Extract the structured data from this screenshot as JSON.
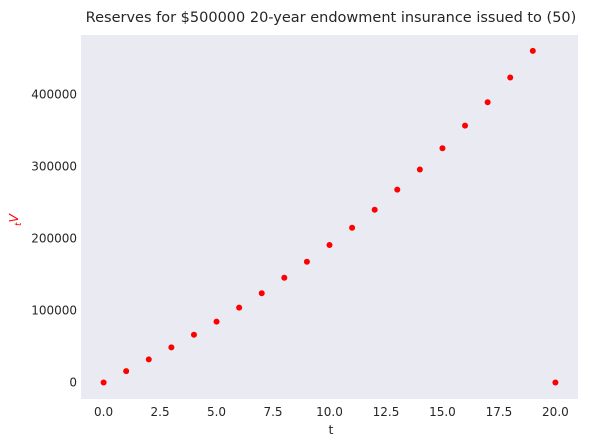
{
  "chart_data": {
    "type": "scatter",
    "title": "Reserves for $500000 20-year endowment insurance issued to (50)",
    "xlabel": "t",
    "ylabel": "tV",
    "ylabel_parts": {
      "subscript": "t",
      "main": "V"
    },
    "xlim": [
      -1.0,
      21.0
    ],
    "ylim": [
      -23000,
      483000
    ],
    "x_ticks": [
      0,
      2.5,
      5,
      7.5,
      10,
      12.5,
      15,
      17.5,
      20
    ],
    "x_tick_labels": [
      "0.0",
      "2.5",
      "5.0",
      "7.5",
      "10.0",
      "12.5",
      "15.0",
      "17.5",
      "20.0"
    ],
    "y_ticks": [
      0,
      100000,
      200000,
      300000,
      400000
    ],
    "y_tick_labels": [
      "0",
      "100000",
      "200000",
      "300000",
      "400000"
    ],
    "grid": false,
    "marker_color": "#ff0000",
    "background_color": "#eaeaf2",
    "series": [
      {
        "x": [
          0,
          1,
          2,
          3,
          4,
          5,
          6,
          7,
          8,
          9,
          10,
          11,
          12,
          13,
          14,
          15,
          16,
          17,
          18,
          19,
          20
        ],
        "y": [
          0,
          15700,
          32000,
          48800,
          66300,
          84500,
          104000,
          124000,
          145500,
          167800,
          191000,
          215000,
          240000,
          268000,
          296000,
          325500,
          357000,
          389500,
          424000,
          461000,
          0
        ]
      }
    ]
  }
}
